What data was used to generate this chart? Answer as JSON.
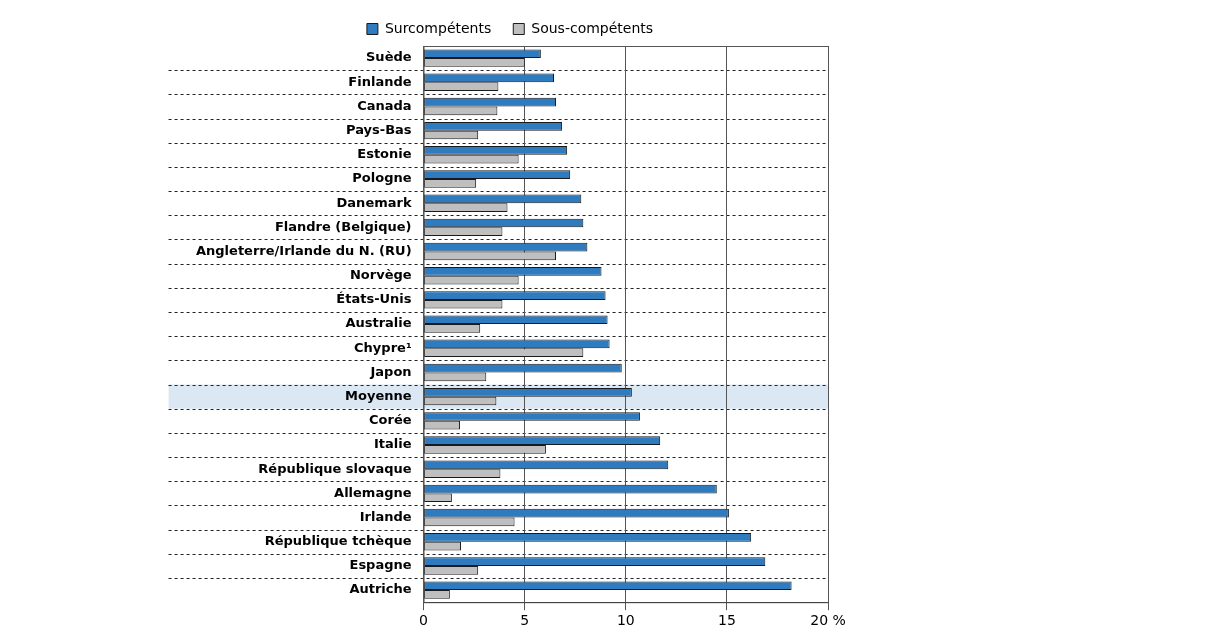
{
  "chart_data": {
    "type": "bar",
    "orientation": "horizontal",
    "categories": [
      "Suède",
      "Finlande",
      "Canada",
      "Pays-Bas",
      "Estonie",
      "Pologne",
      "Danemark",
      "Flandre (Belgique)",
      "Angleterre/Irlande du N. (RU)",
      "Norvège",
      "États-Unis",
      "Australie",
      "Chypre¹",
      "Japon",
      "Moyenne",
      "Corée",
      "Italie",
      "République slovaque",
      "Allemagne",
      "Irlande",
      "République tchèque",
      "Espagne",
      "Autriche"
    ],
    "series": [
      {
        "name": "Surcompétents",
        "color": "#2e7bbf",
        "values": [
          5.8,
          6.45,
          6.55,
          6.85,
          7.1,
          7.25,
          7.8,
          7.9,
          8.1,
          8.8,
          9.0,
          9.1,
          9.2,
          9.8,
          10.3,
          10.7,
          11.7,
          12.1,
          14.5,
          15.1,
          16.2,
          16.9,
          18.2
        ]
      },
      {
        "name": "Sous-compétents",
        "color": "#bfbfbf",
        "values": [
          5.0,
          3.7,
          3.65,
          2.7,
          4.7,
          2.6,
          4.15,
          3.9,
          6.55,
          4.7,
          3.9,
          2.8,
          7.9,
          3.1,
          3.6,
          1.8,
          6.05,
          3.8,
          1.4,
          4.5,
          1.85,
          2.7,
          1.3
        ]
      }
    ],
    "xlim": [
      0,
      20
    ],
    "xticks": [
      0,
      5,
      10,
      15,
      {
        "value": 20,
        "label": "20 %"
      }
    ],
    "bands": [
      {
        "axis": "y",
        "from": "Moyenne",
        "to": "Moyenne",
        "color": "#dbe8f4"
      }
    ],
    "grid": true,
    "legend": "top"
  }
}
